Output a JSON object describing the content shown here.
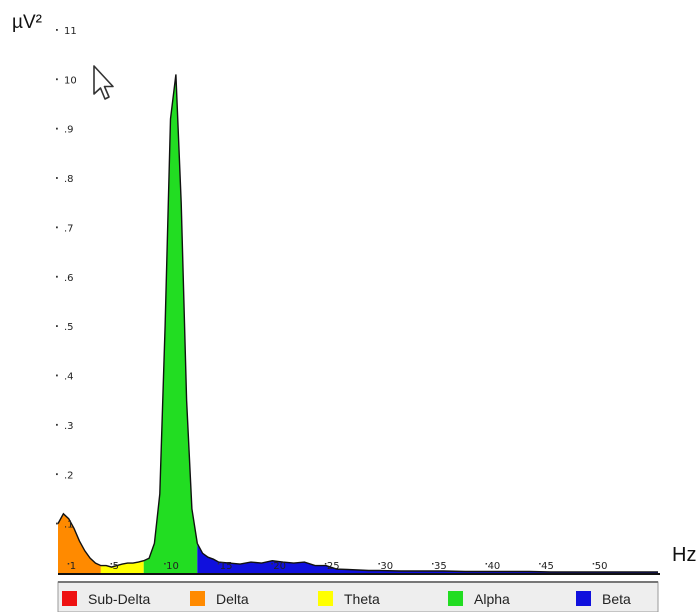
{
  "chart_data": {
    "type": "area",
    "ylabel": "µV²",
    "xlabel": "Hz",
    "xlim": [
      0,
      56
    ],
    "ylim": [
      0,
      11
    ],
    "x_ticks": [
      1,
      5,
      10,
      15,
      20,
      25,
      30,
      35,
      40,
      45,
      50
    ],
    "x_tick_labels": [
      "1",
      "5",
      "10",
      "15",
      "20",
      "25",
      "30",
      "35",
      "40",
      "45",
      "50"
    ],
    "y_ticks": [
      1,
      2,
      3,
      4,
      5,
      6,
      7,
      8,
      9,
      10,
      11
    ],
    "y_tick_labels": [
      ".1",
      ".2",
      ".3",
      ".4",
      ".5",
      ".6",
      ".7",
      ".8",
      ".9",
      "10",
      "11"
    ],
    "bands": [
      {
        "name": "Delta",
        "color": "#ff8a00",
        "x_range": [
          0,
          4
        ]
      },
      {
        "name": "Theta",
        "color": "#ffff00",
        "x_range": [
          4,
          8
        ]
      },
      {
        "name": "Alpha",
        "color": "#22dd22",
        "x_range": [
          8,
          13
        ]
      },
      {
        "name": "Beta",
        "color": "#1010dd",
        "x_range": [
          13,
          56
        ]
      }
    ],
    "series": [
      {
        "x": [
          0,
          0.5,
          1,
          1.5,
          2,
          2.5,
          3,
          3.5,
          4,
          4.5,
          5,
          5.5,
          6,
          6.5,
          7,
          7.5,
          8,
          8.5,
          9,
          9.5,
          10,
          10.5,
          11,
          11.5,
          12,
          12.5,
          13,
          13.5,
          14,
          14.5,
          15,
          16,
          17,
          18,
          19,
          20,
          21,
          22,
          23,
          24,
          25,
          26,
          27,
          28,
          29,
          30,
          32,
          34,
          36,
          38,
          40,
          42,
          44,
          46,
          48,
          50,
          52,
          54,
          56
        ],
        "y": [
          1.0,
          1.2,
          1.1,
          0.9,
          0.65,
          0.45,
          0.3,
          0.2,
          0.15,
          0.15,
          0.12,
          0.15,
          0.18,
          0.2,
          0.2,
          0.22,
          0.25,
          0.3,
          0.6,
          1.6,
          5.0,
          9.2,
          10.1,
          7.5,
          3.5,
          1.3,
          0.6,
          0.4,
          0.32,
          0.28,
          0.22,
          0.2,
          0.18,
          0.22,
          0.2,
          0.25,
          0.22,
          0.2,
          0.22,
          0.15,
          0.15,
          0.08,
          0.07,
          0.06,
          0.05,
          0.05,
          0.04,
          0.04,
          0.04,
          0.03,
          0.03,
          0.03,
          0.03,
          0.02,
          0.02,
          0.02,
          0.02,
          0.02,
          0.02
        ]
      }
    ],
    "legend": {
      "placement": "bottom",
      "items": [
        {
          "label": "Sub-Delta",
          "color": "#ee1111"
        },
        {
          "label": "Delta",
          "color": "#ff8a00"
        },
        {
          "label": "Theta",
          "color": "#ffff00"
        },
        {
          "label": "Alpha",
          "color": "#22dd22"
        },
        {
          "label": "Beta",
          "color": "#1010dd"
        }
      ]
    },
    "grid": false
  },
  "cursor_icon": "arrow-pointer-icon"
}
